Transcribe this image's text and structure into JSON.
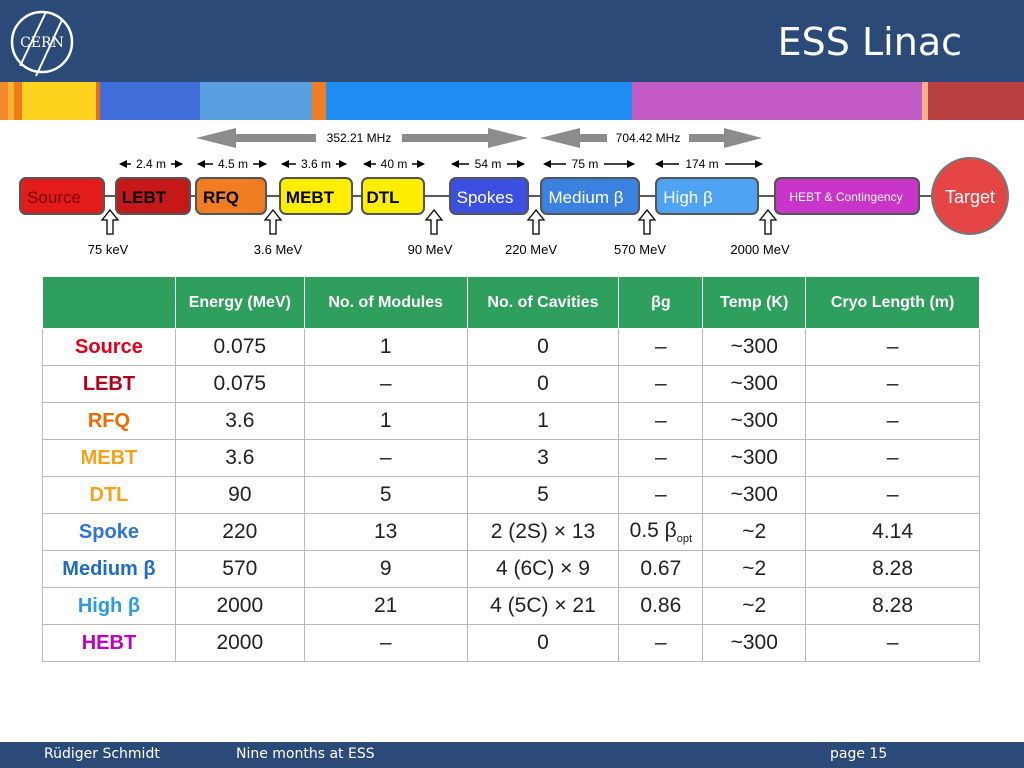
{
  "header": {
    "title": "ESS Linac",
    "logo_text": "CERN"
  },
  "colors": {
    "header_bg": "#2b4a78",
    "table_header": "#2e9f5c",
    "stripe": [
      "#f08a2b",
      "#ffd21e",
      "#3f6ed8",
      "#5a9fe0",
      "#1e8cf0",
      "#c45ac4",
      "#b84040"
    ]
  },
  "frequencies": {
    "low": "352.21 MHz",
    "high": "704.42 MHz"
  },
  "segment_lengths": [
    "2.4 m",
    "4.5 m",
    "3.6 m",
    "40 m",
    "54 m",
    "75 m",
    "174 m"
  ],
  "sections": [
    {
      "label": "Source",
      "color": "#e31b1b"
    },
    {
      "label": "LEBT",
      "color": "#c61818"
    },
    {
      "label": "RFQ",
      "color": "#f07d22"
    },
    {
      "label": "MEBT",
      "color": "#ffee00"
    },
    {
      "label": "DTL",
      "color": "#ffee00"
    },
    {
      "label": "Spokes",
      "color": "#3b4fe0"
    },
    {
      "label": "Medium β",
      "color": "#3b82e0"
    },
    {
      "label": "High β",
      "color": "#4ea3f2"
    },
    {
      "label": "HEBT & Contingency",
      "color": "#c934c9"
    }
  ],
  "target_label": "Target",
  "energies": [
    "75 keV",
    "3.6 MeV",
    "90 MeV",
    "220 MeV",
    "570 MeV",
    "2000 MeV"
  ],
  "table": {
    "headers": [
      "",
      "Energy (MeV)",
      "No. of Modules",
      "No. of Cavities",
      "βg",
      "Temp (K)",
      "Cryo Length (m)"
    ],
    "rows": [
      {
        "name": "Source",
        "color": "#e0001b",
        "energy": "0.075",
        "modules": "1",
        "cavities": "0",
        "beta": "–",
        "beta_sub": "",
        "temp": "~300",
        "cryo": "–"
      },
      {
        "name": "LEBT",
        "color": "#b0001a",
        "energy": "0.075",
        "modules": "–",
        "cavities": "0",
        "beta": "–",
        "beta_sub": "",
        "temp": "~300",
        "cryo": "–"
      },
      {
        "name": "RFQ",
        "color": "#f06a00",
        "energy": "3.6",
        "modules": "1",
        "cavities": "1",
        "beta": "–",
        "beta_sub": "",
        "temp": "~300",
        "cryo": "–"
      },
      {
        "name": "MEBT",
        "color": "#f7a21b",
        "energy": "3.6",
        "modules": "–",
        "cavities": "3",
        "beta": "–",
        "beta_sub": "",
        "temp": "~300",
        "cryo": "–"
      },
      {
        "name": "DTL",
        "color": "#f7a21b",
        "energy": "90",
        "modules": "5",
        "cavities": "5",
        "beta": "–",
        "beta_sub": "",
        "temp": "~300",
        "cryo": "–"
      },
      {
        "name": "Spoke",
        "color": "#2f74d8",
        "energy": "220",
        "modules": "13",
        "cavities": "2 (2S) × 13",
        "beta": "0.5 β",
        "beta_sub": "opt",
        "temp": "~2",
        "cryo": "4.14"
      },
      {
        "name": "Medium β",
        "color": "#1f6cc4",
        "energy": "570",
        "modules": "9",
        "cavities": "4 (6C) × 9",
        "beta": "0.67",
        "beta_sub": "",
        "temp": "~2",
        "cryo": "8.28"
      },
      {
        "name": "High β",
        "color": "#2c9ae8",
        "energy": "2000",
        "modules": "21",
        "cavities": "4 (5C) × 21",
        "beta": "0.86",
        "beta_sub": "",
        "temp": "~2",
        "cryo": "8.28"
      },
      {
        "name": "HEBT",
        "color": "#c000c0",
        "energy": "2000",
        "modules": "–",
        "cavities": "0",
        "beta": "–",
        "beta_sub": "",
        "temp": "~300",
        "cryo": "–"
      }
    ]
  },
  "footer": {
    "author": "Rüdiger Schmidt",
    "talk": "Nine months at ESS",
    "page": "page 15"
  }
}
